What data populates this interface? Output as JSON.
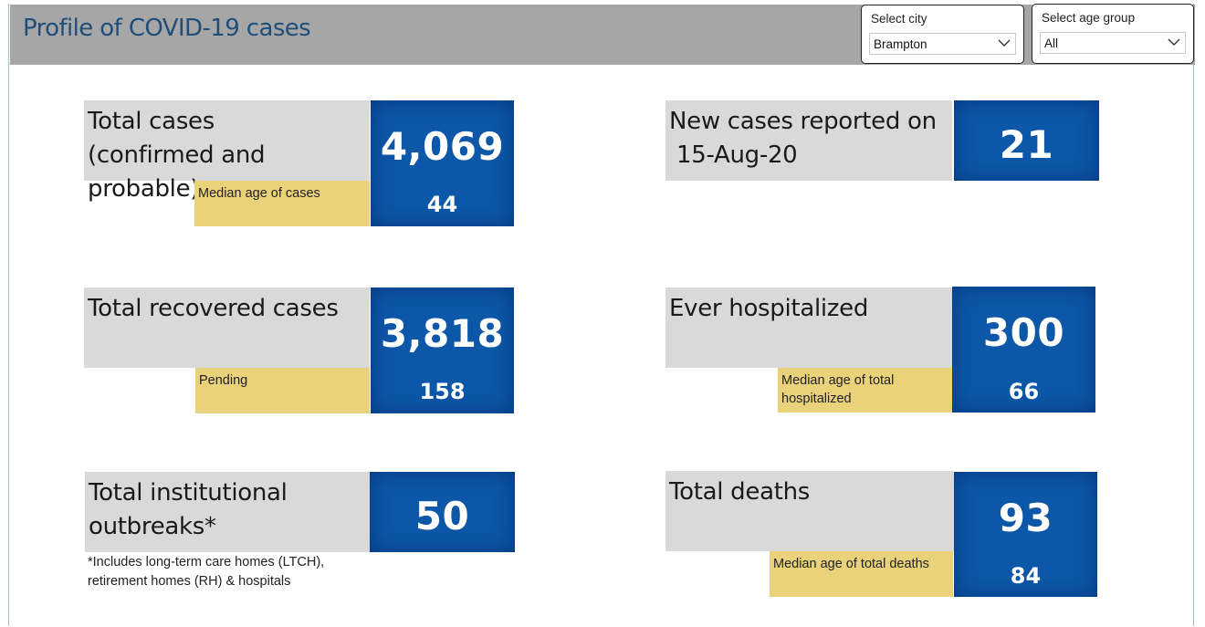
{
  "title": "Profile of COVID-19 cases",
  "filters": {
    "city": {
      "label": "Select city",
      "value": "Brampton"
    },
    "age_group": {
      "label": "Select age group",
      "value": "All"
    }
  },
  "cards": {
    "total_cases": {
      "line1": "Total cases",
      "line2": "(confirmed and probable)",
      "value": "4,069",
      "sub_label": "Median age of cases",
      "sub_value": "44"
    },
    "new_cases": {
      "line1": "New cases reported on",
      "line2": "15-Aug-20",
      "value": "21"
    },
    "recovered": {
      "line1": "Total recovered cases",
      "value": "3,818",
      "sub_label": "Pending",
      "sub_value": "158"
    },
    "hospitalized": {
      "line1": "Ever hospitalized",
      "value": "300",
      "sub_label_line1": "Median age of total",
      "sub_label_line2": "hospitalized",
      "sub_value": "66"
    },
    "outbreaks": {
      "line1": "Total institutional",
      "line2": "outbreaks*",
      "value": "50"
    },
    "deaths": {
      "line1": "Total deaths",
      "value": "93",
      "sub_label": "Median age of total deaths",
      "sub_value": "84"
    }
  },
  "footnote": {
    "line1": "*Includes long-term care homes (LTCH),",
    "line2": "retirement homes (RH) & hospitals"
  },
  "colors": {
    "header_bg": "#a6a6a6",
    "title": "#1f4e79",
    "card_grey": "#d9d9d9",
    "card_yellow": "#ead27a",
    "card_blue": "#0c57a8"
  }
}
